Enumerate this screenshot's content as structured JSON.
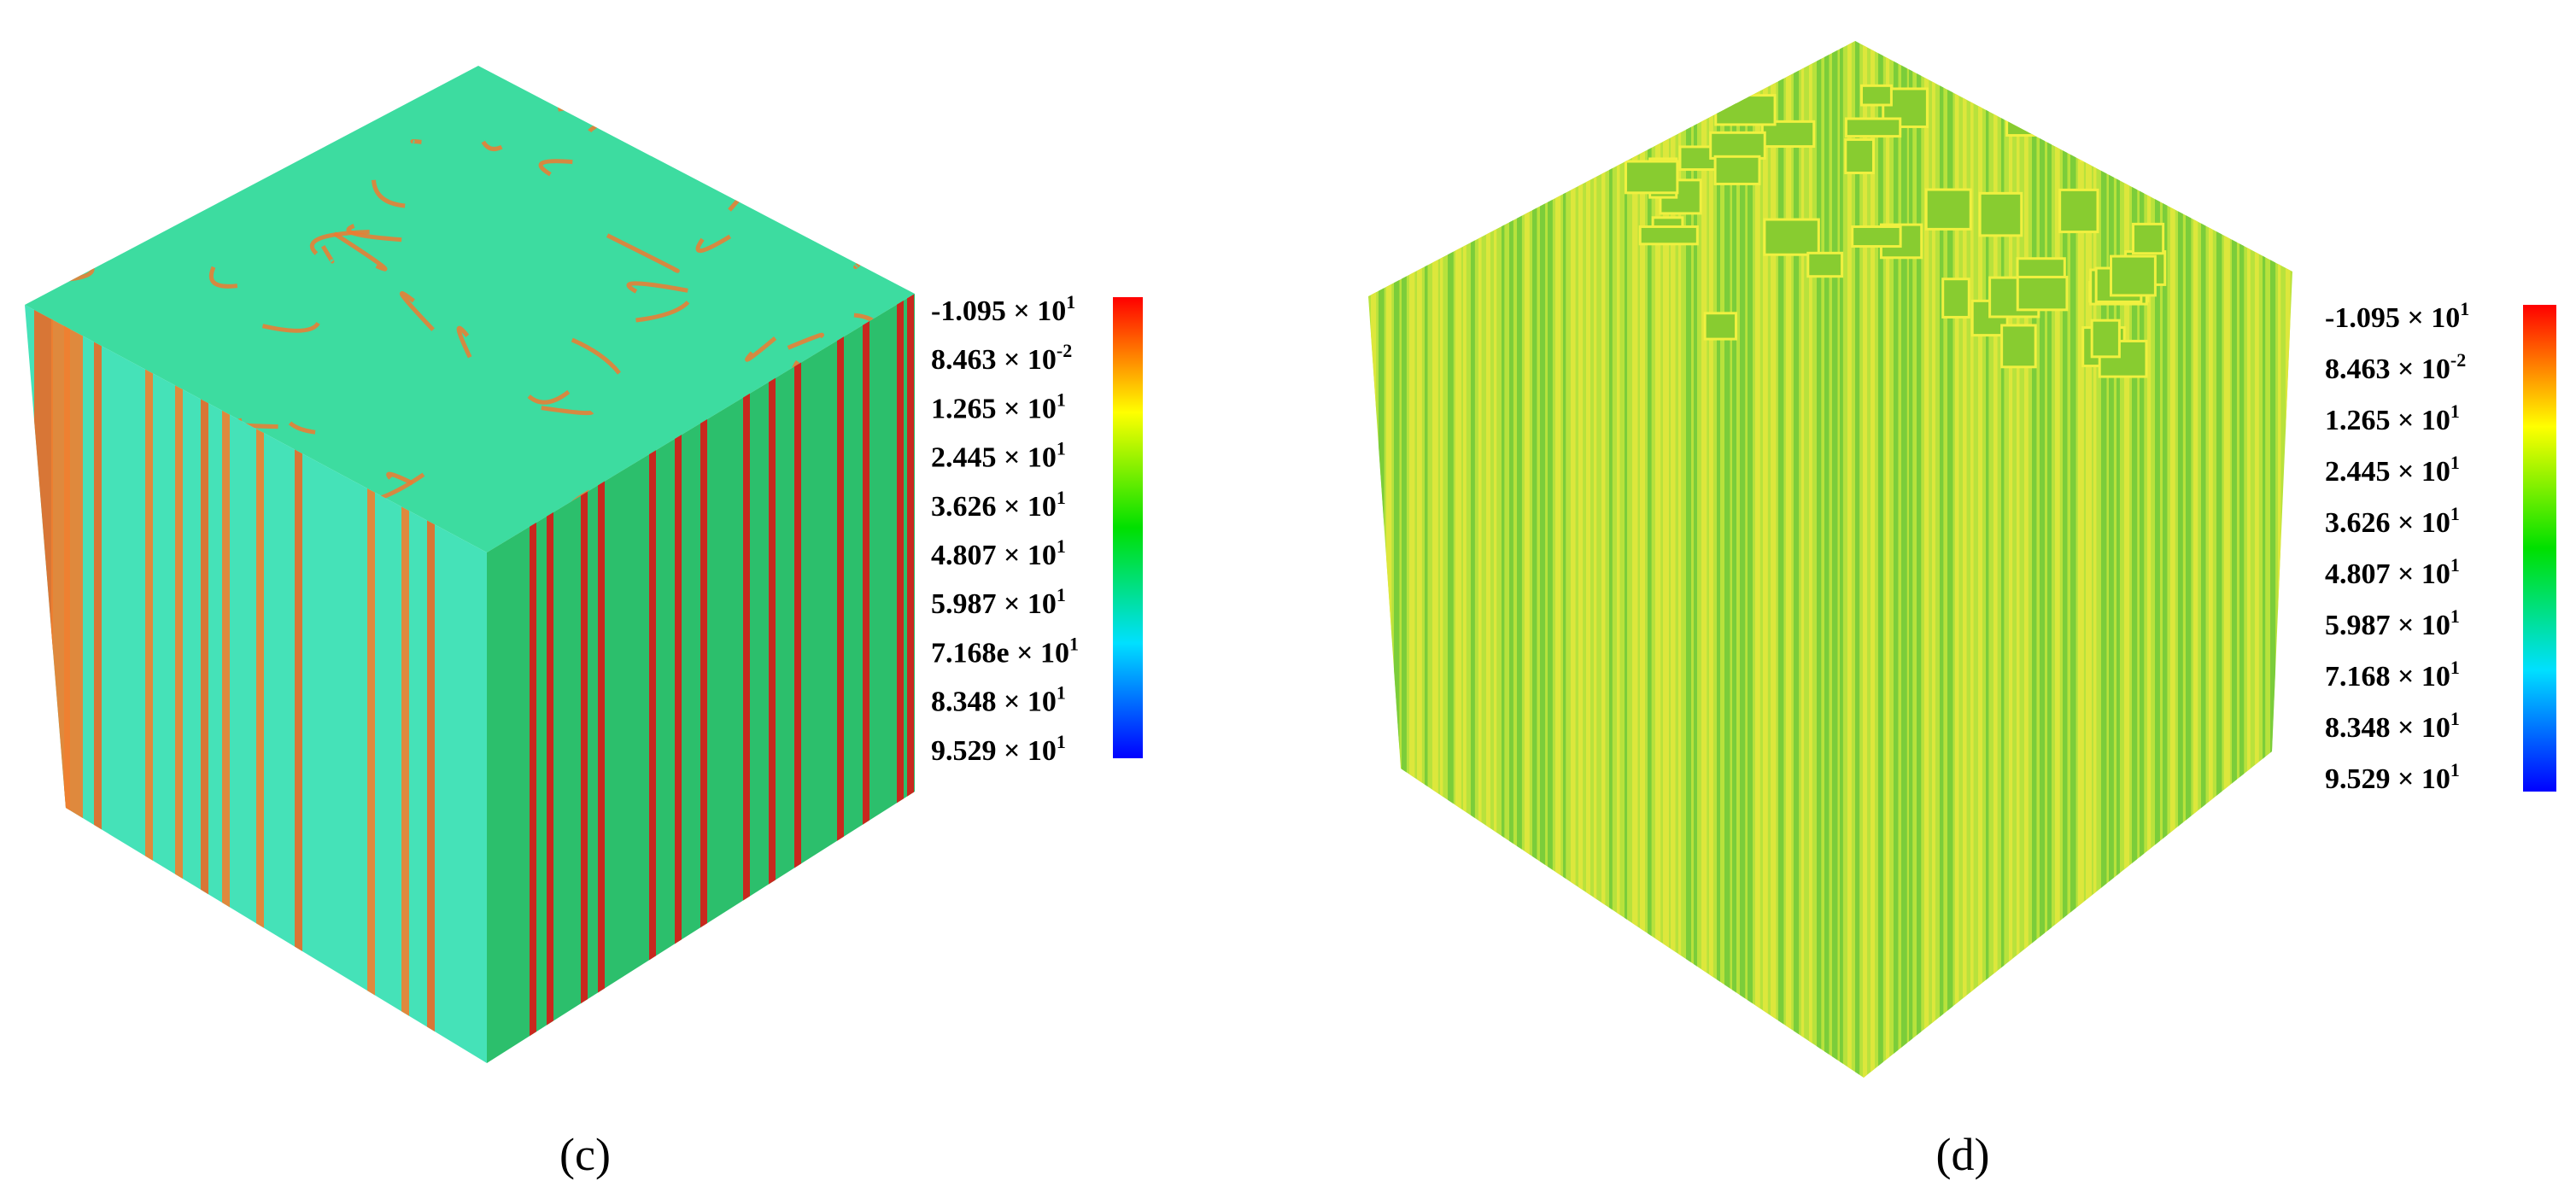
{
  "panels": [
    {
      "caption": "(c)",
      "colorbar_labels": [
        {
          "mantissa": "-1.095 × 10",
          "exponent": "1"
        },
        {
          "mantissa": "8.463 × 10",
          "exponent": "-2"
        },
        {
          "mantissa": "1.265 × 10",
          "exponent": "1"
        },
        {
          "mantissa": "2.445 × 10",
          "exponent": "1"
        },
        {
          "mantissa": "3.626 × 10",
          "exponent": "1"
        },
        {
          "mantissa": "4.807 × 10",
          "exponent": "1"
        },
        {
          "mantissa": "5.987 × 10",
          "exponent": "1"
        },
        {
          "mantissa": "7.168e × 10",
          "exponent": "1"
        },
        {
          "mantissa": "8.348 × 10",
          "exponent": "1"
        },
        {
          "mantissa": "9.529 × 10",
          "exponent": "1"
        }
      ]
    },
    {
      "caption": "(d)",
      "colorbar_labels": [
        {
          "mantissa": "-1.095 × 10",
          "exponent": "1"
        },
        {
          "mantissa": "8.463 × 10",
          "exponent": "-2"
        },
        {
          "mantissa": "1.265 × 10",
          "exponent": "1"
        },
        {
          "mantissa": "2.445 × 10",
          "exponent": "1"
        },
        {
          "mantissa": "3.626 × 10",
          "exponent": "1"
        },
        {
          "mantissa": "4.807 × 10",
          "exponent": "1"
        },
        {
          "mantissa": "5.987 × 10",
          "exponent": "1"
        },
        {
          "mantissa": "7.168 × 10",
          "exponent": "1"
        },
        {
          "mantissa": "8.348 × 10",
          "exponent": "1"
        },
        {
          "mantissa": "9.529 × 10",
          "exponent": "1"
        }
      ]
    }
  ]
}
